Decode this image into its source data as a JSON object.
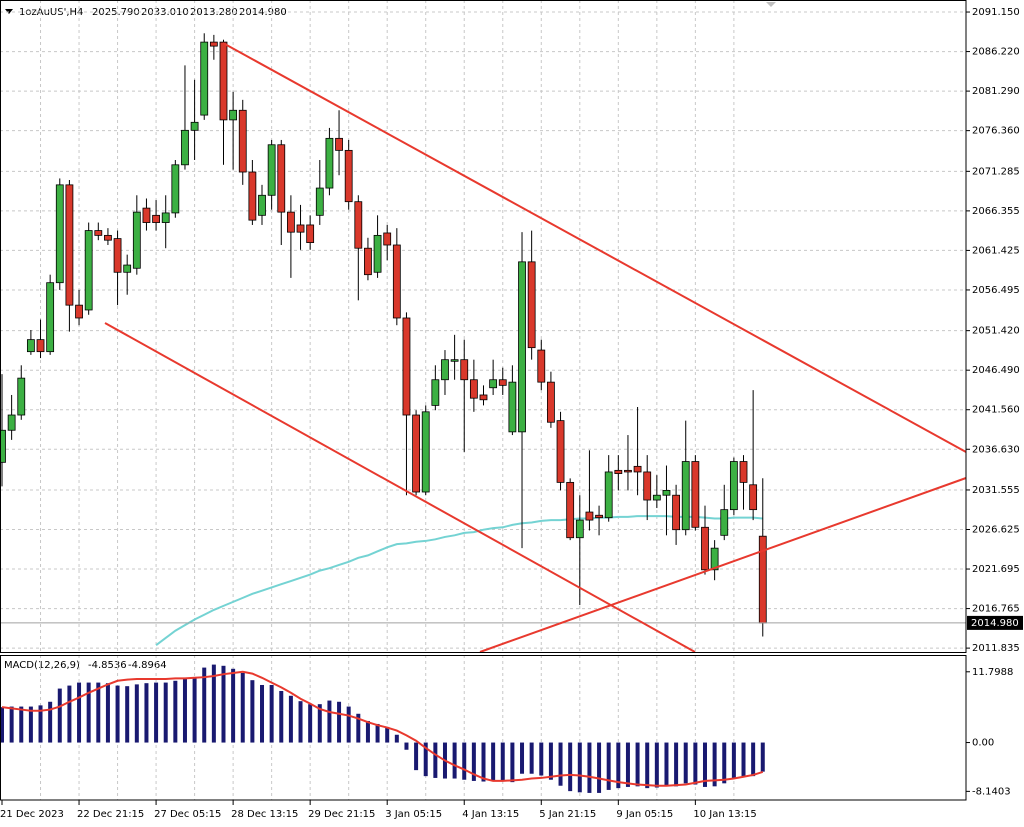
{
  "chart_data": [
    {
      "type": "candlestick",
      "title": "1ozAuUS',H4",
      "header_labels": [
        "2025.790",
        "2033.010",
        "2013.280",
        "2014.980"
      ],
      "categories": [
        "21 Dec 2023",
        null,
        null,
        null,
        null,
        null,
        null,
        null,
        "22 Dec 21:15",
        null,
        null,
        null,
        null,
        null,
        null,
        null,
        "27 Dec 05:15",
        null,
        null,
        null,
        null,
        null,
        null,
        null,
        "28 Dec 13:15",
        null,
        null,
        null,
        null,
        null,
        null,
        null,
        "29 Dec 21:15",
        null,
        null,
        null,
        null,
        null,
        null,
        null,
        "3 Jan 05:15",
        null,
        null,
        null,
        null,
        null,
        null,
        null,
        "4 Jan 13:15",
        null,
        null,
        null,
        null,
        null,
        null,
        null,
        "5 Jan 21:15",
        null,
        null,
        null,
        null,
        null,
        null,
        null,
        "9 Jan 05:15",
        null,
        null,
        null,
        null,
        null,
        null,
        null,
        "10 Jan 13:15",
        null,
        null,
        null,
        null,
        null,
        null,
        null
      ],
      "open": [
        2035.0,
        2039.0,
        2040.9,
        2048.8,
        2050.3,
        2048.8,
        2057.4,
        2069.6,
        2054.6,
        2054.0,
        2063.9,
        2063.3,
        2062.9,
        2058.7,
        2059.2,
        2066.7,
        2065.8,
        2064.9,
        2066.1,
        2072.1,
        2076.4,
        2078.3,
        2087.4,
        2087.4,
        2077.7,
        2078.9,
        2071.2,
        2065.8,
        2068.3,
        2074.6,
        2066.2,
        2064.6,
        2064.6,
        2065.8,
        2069.2,
        2075.4,
        2073.9,
        2067.5,
        2061.7,
        2058.7,
        2063.6,
        2062.1,
        2053.0,
        2040.9,
        2031.3,
        2042.1,
        2045.3,
        2047.6,
        2047.8,
        2045.3,
        2043.4,
        2044.3,
        2045.3,
        2038.8,
        2038.8,
        2060.0,
        2049.0,
        2045.0,
        2040.2,
        2032.5,
        2025.6,
        2028.8,
        2028.4,
        2028.1,
        2034.0,
        2034.0,
        2034.5,
        2033.8,
        2030.3,
        2030.9,
        2030.9,
        2026.6,
        2035.1,
        2026.9,
        2021.6,
        2025.9,
        2029.1,
        2035.1,
        2032.2,
        2025.79
      ],
      "high": [
        2046.0,
        2043.4,
        2047.1,
        2051.5,
        2052.8,
        2058.4,
        2070.4,
        2070.2,
        2056.5,
        2064.9,
        2064.9,
        2064.2,
        2063.9,
        2060.9,
        2068.3,
        2067.9,
        2067.7,
        2068.3,
        2072.7,
        2084.5,
        2082.7,
        2088.5,
        2088.3,
        2087.7,
        2081.2,
        2080.2,
        2072.7,
        2069.6,
        2075.2,
        2075.2,
        2068.3,
        2067.1,
        2065.8,
        2072.7,
        2076.7,
        2078.9,
        2075.2,
        2068.3,
        2063.0,
        2065.8,
        2064.6,
        2064.2,
        2053.7,
        2041.5,
        2042.1,
        2047.1,
        2049.0,
        2050.9,
        2050.3,
        2047.8,
        2044.6,
        2047.8,
        2046.8,
        2047.1,
        2063.7,
        2063.9,
        2050.3,
        2046.3,
        2041.3,
        2033.0,
        2030.9,
        2036.5,
        2029.6,
        2035.9,
        2035.9,
        2038.4,
        2041.9,
        2035.9,
        2033.4,
        2034.6,
        2032.2,
        2040.2,
        2035.9,
        2029.6,
        2025.3,
        2032.2,
        2035.6,
        2035.9,
        2044.0,
        2033.01
      ],
      "low": [
        2032.0,
        2037.8,
        2040.3,
        2048.4,
        2048.0,
        2048.4,
        2056.5,
        2051.3,
        2052.1,
        2053.4,
        2062.7,
        2062.1,
        2054.6,
        2055.9,
        2058.4,
        2063.9,
        2063.9,
        2061.7,
        2065.5,
        2071.5,
        2072.7,
        2077.7,
        2085.2,
        2072.1,
        2071.5,
        2069.6,
        2064.6,
        2064.6,
        2066.5,
        2062.1,
        2058.0,
        2061.5,
        2061.5,
        2064.6,
        2068.3,
        2070.8,
        2066.5,
        2055.2,
        2057.7,
        2058.0,
        2060.2,
        2052.1,
        2030.9,
        2030.9,
        2030.9,
        2041.5,
        2043.4,
        2045.3,
        2036.3,
        2041.3,
        2042.1,
        2043.4,
        2043.4,
        2038.4,
        2024.3,
        2047.8,
        2044.0,
        2039.3,
        2031.5,
        2025.3,
        2017.2,
        2026.5,
        2025.9,
        2027.6,
        2031.5,
        2031.5,
        2030.9,
        2027.8,
        2029.3,
        2025.9,
        2024.7,
        2025.9,
        2026.5,
        2021.0,
        2020.3,
        2025.3,
        2028.4,
        2029.1,
        2027.8,
        2013.28
      ],
      "close": [
        2039.0,
        2040.9,
        2045.5,
        2050.3,
        2048.8,
        2057.4,
        2069.6,
        2054.6,
        2053.0,
        2063.9,
        2063.3,
        2062.7,
        2058.7,
        2059.6,
        2066.2,
        2064.9,
        2064.9,
        2066.1,
        2072.1,
        2076.4,
        2077.4,
        2087.4,
        2086.9,
        2077.7,
        2078.9,
        2071.2,
        2065.2,
        2068.3,
        2074.6,
        2066.2,
        2063.7,
        2063.7,
        2062.4,
        2069.2,
        2075.4,
        2073.9,
        2067.5,
        2061.7,
        2058.4,
        2063.3,
        2062.1,
        2053.0,
        2040.9,
        2031.3,
        2041.3,
        2045.3,
        2047.8,
        2047.8,
        2045.3,
        2043.0,
        2042.8,
        2045.3,
        2044.6,
        2045.0,
        2060.0,
        2049.3,
        2045.0,
        2040.0,
        2032.5,
        2025.6,
        2027.8,
        2027.8,
        2028.1,
        2033.8,
        2033.6,
        2033.8,
        2033.8,
        2030.3,
        2030.9,
        2031.5,
        2026.6,
        2035.1,
        2026.9,
        2021.6,
        2024.3,
        2029.1,
        2035.1,
        2032.5,
        2029.1,
        2014.98
      ],
      "up_color": "#3cb043",
      "down_color": "#d9382b",
      "ma": {
        "color": "#74d3d3",
        "values": [
          null,
          null,
          null,
          null,
          null,
          null,
          null,
          null,
          null,
          null,
          null,
          null,
          null,
          null,
          null,
          null,
          2012.2,
          2013.1,
          2014.0,
          2014.7,
          2015.4,
          2016.0,
          2016.6,
          2017.1,
          2017.6,
          2018.1,
          2018.6,
          2019.0,
          2019.4,
          2019.8,
          2020.2,
          2020.6,
          2021.0,
          2021.5,
          2021.8,
          2022.2,
          2022.6,
          2023.1,
          2023.4,
          2023.9,
          2024.4,
          2024.8,
          2024.9,
          2025.1,
          2025.2,
          2025.4,
          2025.7,
          2025.9,
          2026.2,
          2026.3,
          2026.6,
          2026.8,
          2026.9,
          2027.2,
          2027.4,
          2027.5,
          2027.7,
          2027.8,
          2027.8,
          2027.9,
          2028.0,
          2028.0,
          2028.1,
          2028.1,
          2028.2,
          2028.2,
          2028.3,
          2028.3,
          2028.3,
          2028.3,
          2028.2,
          2028.2,
          2028.2,
          2028.1,
          2028.0,
          2028.0,
          2028.1,
          2028.1,
          2028.1,
          2028.0
        ]
      },
      "ylim": [
        2011.35,
        2092.65
      ],
      "yticks": [
        {
          "value": 2091.15,
          "label": "2091.150"
        },
        {
          "value": 2086.22,
          "label": "2086.220"
        },
        {
          "value": 2081.29,
          "label": "2081.290"
        },
        {
          "value": 2076.36,
          "label": "2076.360"
        },
        2071.285,
        2066.355,
        2061.425,
        2056.495,
        {
          "value": 2051.42,
          "label": "2051.420"
        },
        {
          "value": 2046.49,
          "label": "2046.490"
        },
        {
          "value": 2041.56,
          "label": "2041.560"
        },
        {
          "value": 2036.63,
          "label": "2036.630"
        },
        2031.555,
        2026.625,
        2021.695,
        2016.765,
        2011.835
      ],
      "grid": true
    },
    {
      "type": "macd",
      "title": "MACD(12,26,9)",
      "histogram": {
        "color": "#191970",
        "values": [
          5.9,
          6.0,
          6.0,
          6.0,
          6.2,
          6.8,
          9.0,
          9.5,
          10.0,
          10.0,
          10.0,
          9.9,
          9.5,
          9.4,
          9.7,
          9.9,
          10.0,
          10.0,
          10.3,
          10.6,
          10.9,
          12.5,
          13.0,
          12.8,
          12.3,
          11.6,
          10.4,
          9.6,
          9.6,
          8.6,
          7.8,
          6.9,
          6.4,
          6.4,
          7.0,
          6.8,
          6.0,
          4.8,
          3.6,
          3.1,
          2.6,
          1.3,
          -1.2,
          -4.6,
          -5.6,
          -5.9,
          -6.0,
          -6.0,
          -6.2,
          -6.4,
          -6.5,
          -6.4,
          -6.4,
          -6.6,
          -5.2,
          -5.2,
          -5.5,
          -6.2,
          -7.2,
          -8.1,
          -8.3,
          -8.4,
          -8.4,
          -7.9,
          -7.6,
          -7.4,
          -7.3,
          -7.6,
          -7.5,
          -7.3,
          -7.3,
          -6.8,
          -7.0,
          -7.4,
          -7.3,
          -6.8,
          -5.9,
          -5.6,
          -5.6,
          -4.8536
        ]
      },
      "signal": {
        "color": "#e8392e",
        "values": [
          5.9,
          5.7,
          5.5,
          5.3,
          5.3,
          5.5,
          6.0,
          6.8,
          7.5,
          8.3,
          9.0,
          9.7,
          10.3,
          10.5,
          10.6,
          10.6,
          10.6,
          10.6,
          10.7,
          10.7,
          10.8,
          10.9,
          11.1,
          11.4,
          11.6,
          11.8,
          11.5,
          10.8,
          10.0,
          9.2,
          8.3,
          7.3,
          6.5,
          5.6,
          5.1,
          4.8,
          4.5,
          4.0,
          3.4,
          2.9,
          2.5,
          2.0,
          1.2,
          0.3,
          -0.9,
          -2.0,
          -3.0,
          -3.8,
          -4.5,
          -5.3,
          -6.0,
          -6.4,
          -6.4,
          -6.3,
          -6.2,
          -6.0,
          -5.9,
          -5.7,
          -5.5,
          -5.4,
          -5.5,
          -5.7,
          -6.0,
          -6.3,
          -6.6,
          -6.8,
          -7.0,
          -7.1,
          -7.2,
          -7.2,
          -7.1,
          -7.0,
          -6.7,
          -6.4,
          -6.3,
          -6.2,
          -6.0,
          -5.7,
          -5.4,
          -4.8964
        ]
      },
      "ylim": [
        -9.58,
        14.6
      ],
      "yticks": [
        11.7988,
        {
          "value": 0,
          "label": "0.00"
        },
        -8.1403
      ]
    }
  ]
}
